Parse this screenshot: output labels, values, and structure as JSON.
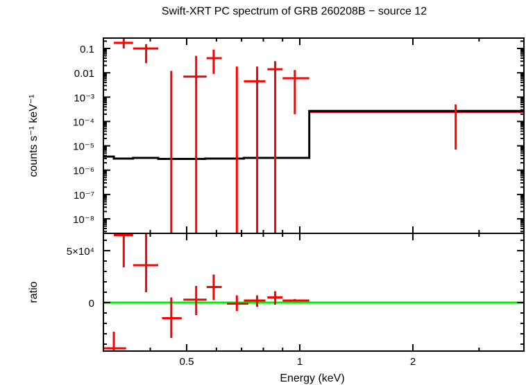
{
  "title": "Swift-XRT PC spectrum of GRB 260208B − source 12",
  "colors": {
    "data": "#ff0000",
    "model": "#000000",
    "ratio_ref": "#00ee00",
    "axes": "#000000"
  },
  "chart_data": [
    {
      "type": "scatter",
      "panel": "top",
      "title": "Swift-XRT PC spectrum of GRB 260208B − source 12",
      "xlabel": "Energy (keV)",
      "ylabel": "counts s⁻¹ keV⁻¹",
      "xscale": "log",
      "yscale": "log",
      "xlim": [
        0.3,
        4.0
      ],
      "ylim": [
        3e-09,
        0.2
      ],
      "ytick_labels": [
        "0.1",
        "0.01",
        "10⁻³",
        "10⁻⁴",
        "10⁻⁵",
        "10⁻⁶",
        "10⁻⁷",
        "10⁻⁸"
      ],
      "yticks": [
        0.1,
        0.01,
        0.001,
        0.0001,
        1e-05,
        1e-06,
        1e-07,
        1e-08
      ],
      "series": [
        {
          "name": "data",
          "style": "crosses",
          "points": [
            {
              "x": 0.34,
              "xlo": 0.32,
              "xhi": 0.36,
              "y": 0.17,
              "ylo": 0.1,
              "yhi": 0.25
            },
            {
              "x": 0.39,
              "xlo": 0.36,
              "xhi": 0.42,
              "y": 0.1,
              "ylo": 0.025,
              "yhi": 0.15
            },
            {
              "x": 0.455,
              "xlo": 0.455,
              "xhi": 0.455,
              "y": 0.0,
              "ylo": 1e-09,
              "yhi": 0.012
            },
            {
              "x": 0.53,
              "xlo": 0.49,
              "xhi": 0.565,
              "y": 0.007,
              "ylo": 1e-09,
              "yhi": 0.05
            },
            {
              "x": 0.59,
              "xlo": 0.565,
              "xhi": 0.62,
              "y": 0.04,
              "ylo": 0.009,
              "yhi": 0.09
            },
            {
              "x": 0.68,
              "xlo": 0.68,
              "xhi": 0.68,
              "y": 0.0,
              "ylo": 1e-09,
              "yhi": 0.018
            },
            {
              "x": 0.77,
              "xlo": 0.71,
              "xhi": 0.81,
              "y": 0.0045,
              "ylo": 1e-09,
              "yhi": 0.018
            },
            {
              "x": 0.86,
              "xlo": 0.82,
              "xhi": 0.9,
              "y": 0.014,
              "ylo": 1e-09,
              "yhi": 0.03
            },
            {
              "x": 0.97,
              "xlo": 0.9,
              "xhi": 1.06,
              "y": 0.006,
              "ylo": 0.0002,
              "yhi": 0.013
            },
            {
              "x": 2.6,
              "xlo": 2.6,
              "xhi": 2.6,
              "y": 0.00025,
              "ylo": 7e-06,
              "yhi": 0.0005
            }
          ]
        },
        {
          "name": "model",
          "style": "step",
          "steps": [
            {
              "xlo": 0.3,
              "xhi": 0.32,
              "y": 3.6e-06
            },
            {
              "xlo": 0.32,
              "xhi": 0.36,
              "y": 3e-06
            },
            {
              "xlo": 0.36,
              "xhi": 0.42,
              "y": 3.2e-06
            },
            {
              "xlo": 0.42,
              "xhi": 0.56,
              "y": 2.9e-06
            },
            {
              "xlo": 0.56,
              "xhi": 0.71,
              "y": 3e-06
            },
            {
              "xlo": 0.71,
              "xhi": 1.06,
              "y": 3.2e-06
            },
            {
              "xlo": 1.06,
              "xhi": 4.0,
              "y": 0.00027
            }
          ]
        }
      ]
    },
    {
      "type": "scatter",
      "panel": "bottom",
      "xlabel": "Energy (keV)",
      "ylabel": "ratio",
      "xscale": "log",
      "xlim": [
        0.3,
        4.0
      ],
      "ylim": [
        -46000,
        67000
      ],
      "xticks": [
        0.5,
        1,
        2
      ],
      "xtick_labels": [
        "0.5",
        "1",
        "2"
      ],
      "yticks": [
        50000,
        0
      ],
      "ytick_labels": [
        "5×10⁴",
        "0"
      ],
      "reference_line": 0,
      "series": [
        {
          "name": "ratio",
          "style": "crosses",
          "points": [
            {
              "x": 0.32,
              "xlo": 0.3,
              "xhi": 0.345,
              "y": -44000,
              "ylo": -46000,
              "yhi": -28000
            },
            {
              "x": 0.34,
              "xlo": 0.32,
              "xhi": 0.36,
              "y": 65000,
              "ylo": 34000,
              "yhi": 67000
            },
            {
              "x": 0.39,
              "xlo": 0.36,
              "xhi": 0.42,
              "y": 36000,
              "ylo": 10000,
              "yhi": 67000
            },
            {
              "x": 0.455,
              "xlo": 0.43,
              "xhi": 0.485,
              "y": -15000,
              "ylo": -34000,
              "yhi": 5000
            },
            {
              "x": 0.53,
              "xlo": 0.49,
              "xhi": 0.565,
              "y": 2800,
              "ylo": -12000,
              "yhi": 16000
            },
            {
              "x": 0.59,
              "xlo": 0.565,
              "xhi": 0.62,
              "y": 15000,
              "ylo": 2500,
              "yhi": 27000
            },
            {
              "x": 0.68,
              "xlo": 0.64,
              "xhi": 0.73,
              "y": -1000,
              "ylo": -8000,
              "yhi": 7000
            },
            {
              "x": 0.77,
              "xlo": 0.71,
              "xhi": 0.81,
              "y": 2000,
              "ylo": -4000,
              "yhi": 7000
            },
            {
              "x": 0.86,
              "xlo": 0.82,
              "xhi": 0.9,
              "y": 5000,
              "ylo": -2000,
              "yhi": 11000
            },
            {
              "x": 0.97,
              "xlo": 0.9,
              "xhi": 1.06,
              "y": 2000,
              "ylo": 1000,
              "yhi": 3500
            }
          ]
        }
      ]
    }
  ]
}
